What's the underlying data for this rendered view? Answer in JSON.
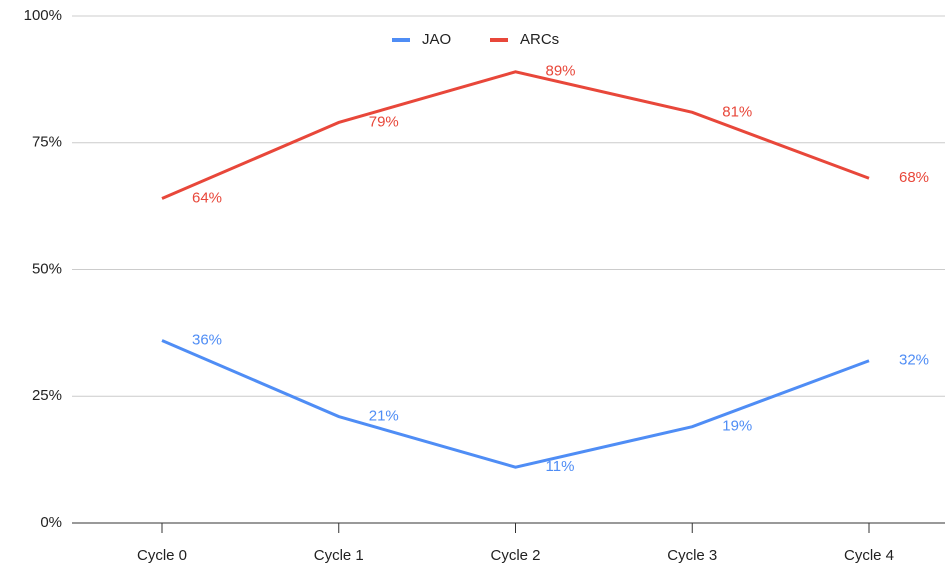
{
  "chart_data": {
    "type": "line",
    "categories": [
      "Cycle 0",
      "Cycle 1",
      "Cycle 2",
      "Cycle 3",
      "Cycle 4"
    ],
    "series": [
      {
        "name": "JAO",
        "color": "#4f8df5",
        "values": [
          36,
          21,
          11,
          19,
          32
        ],
        "value_labels": [
          "36%",
          "21%",
          "11%",
          "19%",
          "32%"
        ]
      },
      {
        "name": "ARCs",
        "color": "#e8473a",
        "values": [
          64,
          79,
          89,
          81,
          68
        ],
        "value_labels": [
          "64%",
          "79%",
          "89%",
          "81%",
          "68%"
        ]
      }
    ],
    "ylim": [
      0,
      100
    ],
    "yticks": [
      {
        "value": 0,
        "label": "0%"
      },
      {
        "value": 25,
        "label": "25%"
      },
      {
        "value": 50,
        "label": "50%"
      },
      {
        "value": 75,
        "label": "75%"
      },
      {
        "value": 100,
        "label": "100%"
      }
    ],
    "grid": true,
    "legend": "top"
  }
}
